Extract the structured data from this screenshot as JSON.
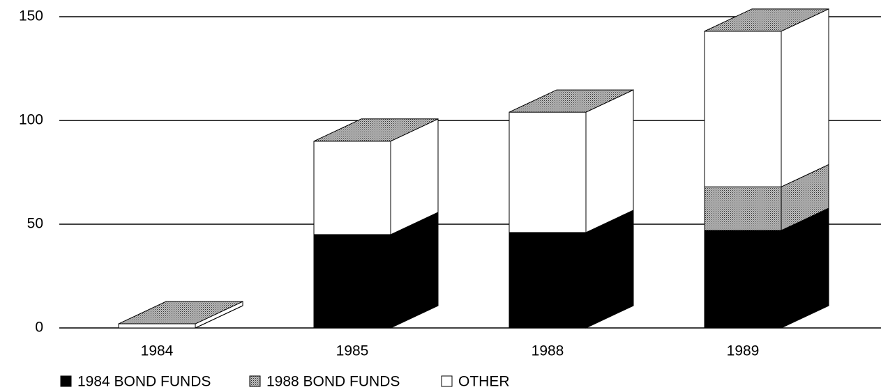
{
  "chart_data": {
    "type": "bar3d_stacked",
    "categories": [
      "1984",
      "1985",
      "1988",
      "1989"
    ],
    "series": [
      {
        "name": "1984 BOND FUNDS",
        "color": "#000000",
        "values": [
          0,
          45,
          46,
          47
        ]
      },
      {
        "name": "1988 BOND FUNDS",
        "color": "#9a9a9a",
        "values": [
          0,
          0,
          0,
          21
        ]
      },
      {
        "name": "OTHER",
        "color": "#ffffff",
        "values": [
          2,
          45,
          58,
          75
        ]
      }
    ],
    "ylim": [
      0,
      150
    ],
    "yticks": [
      0,
      50,
      100,
      150
    ],
    "grid": true
  }
}
